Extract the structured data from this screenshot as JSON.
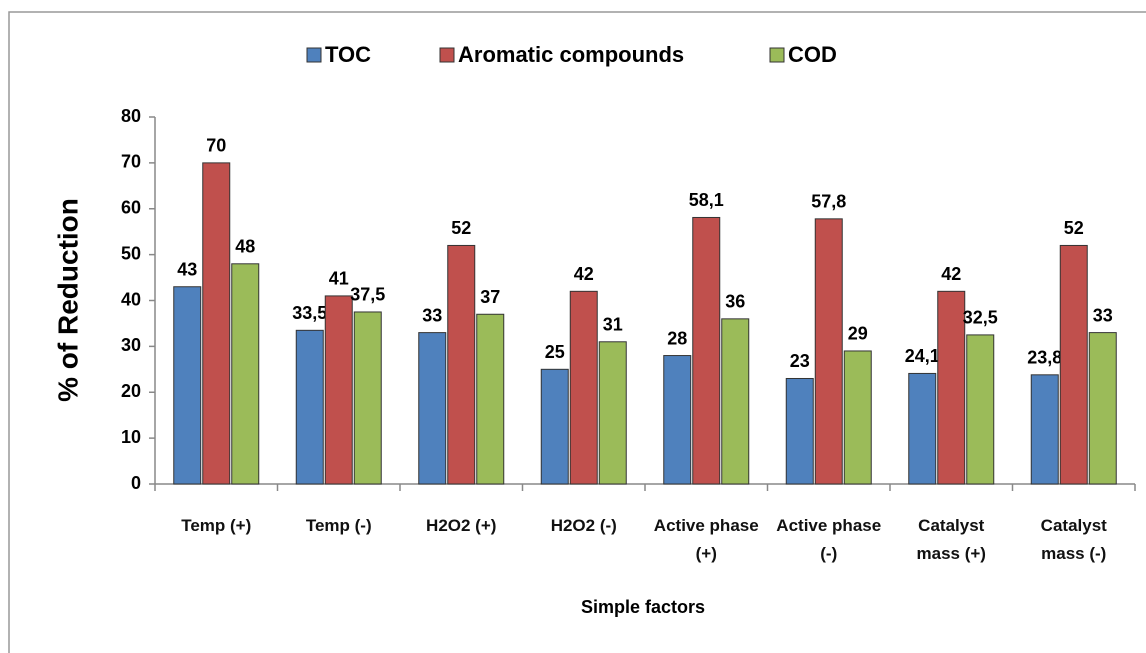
{
  "chart_data": {
    "type": "bar",
    "categories": [
      "Temp (+)",
      "Temp (-)",
      "H2O2 (+)",
      "H2O2 (-)",
      "Active phase (+)",
      "Active phase (-)",
      "Catalyst mass (+)",
      "Catalyst mass (-)"
    ],
    "series": [
      {
        "name": "TOC",
        "color": "#4f81bd",
        "values": [
          43,
          33.5,
          33,
          25,
          28,
          23,
          24.1,
          23.8
        ],
        "value_labels": [
          "43",
          "33,5",
          "33",
          "25",
          "28",
          "23",
          "24,1",
          "23,8"
        ]
      },
      {
        "name": "Aromatic compounds",
        "color": "#c0504d",
        "values": [
          70,
          41,
          52,
          42,
          58.1,
          57.8,
          42,
          52
        ],
        "value_labels": [
          "70",
          "41",
          "52",
          "42",
          "58,1",
          "57,8",
          "42",
          "52"
        ]
      },
      {
        "name": "COD",
        "color": "#9bbb59",
        "values": [
          48,
          37.5,
          37,
          31,
          36,
          29,
          32.5,
          33
        ],
        "value_labels": [
          "48",
          "37,5",
          "37",
          "31",
          "36",
          "29",
          "32,5",
          "33"
        ]
      }
    ],
    "y_label": "% of Reduction",
    "x_label": "Simple factors",
    "ylim": [
      0,
      80
    ],
    "yticks": [
      0,
      10,
      20,
      30,
      40,
      50,
      60,
      70,
      80
    ],
    "legend": "top"
  }
}
